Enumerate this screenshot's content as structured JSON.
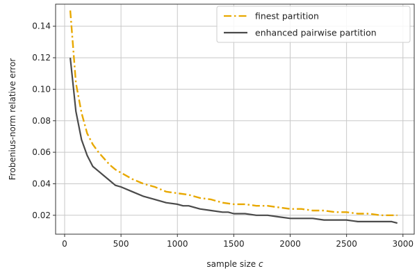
{
  "chart_data": {
    "type": "line",
    "xlabel": "sample size c",
    "ylabel": "Frobenius-norm relative error",
    "xlim": [
      -80,
      3100
    ],
    "ylim": [
      0.008,
      0.154
    ],
    "xticks": [
      0,
      500,
      1000,
      1500,
      2000,
      2500,
      3000
    ],
    "yticks": [
      0.02,
      0.04,
      0.06,
      0.08,
      0.1,
      0.12,
      0.14
    ],
    "xtick_labels": [
      "0",
      "500",
      "1000",
      "1500",
      "2000",
      "2500",
      "3000"
    ],
    "ytick_labels": [
      "0.02",
      "0.04",
      "0.06",
      "0.08",
      "0.10",
      "0.12",
      "0.14"
    ],
    "grid": true,
    "legend_position": "top-right",
    "series": [
      {
        "name": "finest partition",
        "color": "#E8A800",
        "style": "dashdot",
        "x": [
          50,
          100,
          150,
          200,
          250,
          300,
          350,
          400,
          450,
          500,
          600,
          700,
          800,
          900,
          1000,
          1100,
          1200,
          1300,
          1400,
          1500,
          1600,
          1700,
          1800,
          1900,
          2000,
          2100,
          2200,
          2300,
          2400,
          2500,
          2600,
          2700,
          2800,
          2900,
          2950
        ],
        "y": [
          0.15,
          0.104,
          0.085,
          0.072,
          0.065,
          0.06,
          0.056,
          0.052,
          0.049,
          0.047,
          0.043,
          0.04,
          0.038,
          0.035,
          0.034,
          0.033,
          0.031,
          0.03,
          0.028,
          0.027,
          0.027,
          0.026,
          0.026,
          0.025,
          0.024,
          0.024,
          0.023,
          0.023,
          0.022,
          0.022,
          0.021,
          0.021,
          0.02,
          0.02,
          0.02
        ]
      },
      {
        "name": "enhanced pairwise partition",
        "color": "#4a4a4a",
        "style": "solid",
        "x": [
          50,
          100,
          150,
          200,
          250,
          300,
          350,
          400,
          450,
          500,
          600,
          700,
          800,
          900,
          1000,
          1050,
          1100,
          1200,
          1300,
          1400,
          1450,
          1500,
          1600,
          1700,
          1800,
          1900,
          2000,
          2100,
          2200,
          2300,
          2400,
          2500,
          2600,
          2700,
          2800,
          2850,
          2900,
          2950
        ],
        "y": [
          0.12,
          0.086,
          0.068,
          0.058,
          0.051,
          0.048,
          0.045,
          0.042,
          0.039,
          0.038,
          0.035,
          0.032,
          0.03,
          0.028,
          0.027,
          0.026,
          0.026,
          0.024,
          0.023,
          0.022,
          0.022,
          0.021,
          0.021,
          0.02,
          0.02,
          0.019,
          0.018,
          0.018,
          0.018,
          0.017,
          0.017,
          0.017,
          0.016,
          0.016,
          0.016,
          0.016,
          0.016,
          0.015
        ]
      }
    ]
  }
}
